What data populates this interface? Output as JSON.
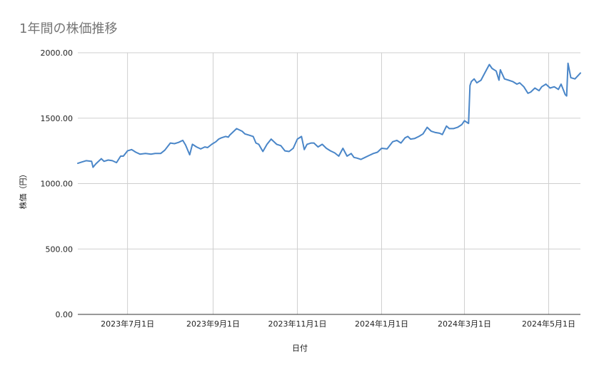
{
  "chart_data": {
    "type": "line",
    "title": "1年間の株価推移",
    "xlabel": "日付",
    "ylabel": "株価（円）",
    "ylim": [
      0,
      2000
    ],
    "yticks": [
      {
        "value": 0,
        "label": "0.00"
      },
      {
        "value": 500,
        "label": "500.00"
      },
      {
        "value": 1000,
        "label": "1000.00"
      },
      {
        "value": 1500,
        "label": "1500.00"
      },
      {
        "value": 2000,
        "label": "2000.00"
      }
    ],
    "xlim": [
      "2023-05-26",
      "2024-05-24"
    ],
    "xticks": [
      {
        "value": "2023-07-01",
        "label": "2023年7月1日"
      },
      {
        "value": "2023-09-01",
        "label": "2023年9月1日"
      },
      {
        "value": "2023-11-01",
        "label": "2023年11月1日"
      },
      {
        "value": "2024-01-01",
        "label": "2024年1月1日"
      },
      {
        "value": "2024-03-01",
        "label": "2024年3月1日"
      },
      {
        "value": "2024-05-01",
        "label": "2024年5月1日"
      }
    ],
    "grid": true,
    "legend": "none",
    "line_color": "#4a86c8",
    "series": [
      {
        "x": [
          "2023-05-26",
          "2023-05-29",
          "2023-06-01",
          "2023-06-05",
          "2023-06-06",
          "2023-06-08",
          "2023-06-12",
          "2023-06-14",
          "2023-06-17",
          "2023-06-20",
          "2023-06-23",
          "2023-06-26",
          "2023-06-28",
          "2023-07-01",
          "2023-07-04",
          "2023-07-07",
          "2023-07-10",
          "2023-07-14",
          "2023-07-18",
          "2023-07-21",
          "2023-07-25",
          "2023-07-28",
          "2023-08-01",
          "2023-08-04",
          "2023-08-07",
          "2023-08-10",
          "2023-08-12",
          "2023-08-15",
          "2023-08-17",
          "2023-08-20",
          "2023-08-23",
          "2023-08-26",
          "2023-08-28",
          "2023-08-31",
          "2023-09-03",
          "2023-09-05",
          "2023-09-07",
          "2023-09-10",
          "2023-09-12",
          "2023-09-13",
          "2023-09-18",
          "2023-09-22",
          "2023-09-24",
          "2023-09-27",
          "2023-09-30",
          "2023-10-02",
          "2023-10-04",
          "2023-10-07",
          "2023-10-10",
          "2023-10-13",
          "2023-10-17",
          "2023-10-20",
          "2023-10-23",
          "2023-10-26",
          "2023-10-29",
          "2023-11-01",
          "2023-11-04",
          "2023-11-06",
          "2023-11-08",
          "2023-11-11",
          "2023-11-13",
          "2023-11-16",
          "2023-11-19",
          "2023-11-22",
          "2023-11-25",
          "2023-11-28",
          "2023-12-01",
          "2023-12-04",
          "2023-12-07",
          "2023-12-10",
          "2023-12-12",
          "2023-12-14",
          "2023-12-17",
          "2023-12-20",
          "2023-12-23",
          "2023-12-26",
          "2023-12-29",
          "2024-01-01",
          "2024-01-05",
          "2024-01-09",
          "2024-01-12",
          "2024-01-15",
          "2024-01-18",
          "2024-01-20",
          "2024-01-22",
          "2024-01-25",
          "2024-01-28",
          "2024-01-31",
          "2024-02-03",
          "2024-02-06",
          "2024-02-09",
          "2024-02-12",
          "2024-02-14",
          "2024-02-17",
          "2024-02-19",
          "2024-02-22",
          "2024-02-25",
          "2024-02-28",
          "2024-03-01",
          "2024-03-04",
          "2024-03-05",
          "2024-03-06",
          "2024-03-08",
          "2024-03-10",
          "2024-03-13",
          "2024-03-16",
          "2024-03-19",
          "2024-03-21",
          "2024-03-24",
          "2024-03-26",
          "2024-03-27",
          "2024-03-30",
          "2024-04-02",
          "2024-04-05",
          "2024-04-08",
          "2024-04-10",
          "2024-04-13",
          "2024-04-16",
          "2024-04-18",
          "2024-04-21",
          "2024-04-24",
          "2024-04-26",
          "2024-04-29",
          "2024-05-02",
          "2024-05-05",
          "2024-05-08",
          "2024-05-10",
          "2024-05-13",
          "2024-05-14",
          "2024-05-15",
          "2024-05-17",
          "2024-05-20",
          "2024-05-24"
        ],
        "y": [
          1155,
          1165,
          1175,
          1170,
          1125,
          1150,
          1190,
          1170,
          1180,
          1175,
          1160,
          1210,
          1210,
          1250,
          1260,
          1240,
          1225,
          1230,
          1225,
          1230,
          1230,
          1255,
          1310,
          1305,
          1315,
          1330,
          1295,
          1220,
          1300,
          1280,
          1265,
          1280,
          1275,
          1300,
          1320,
          1340,
          1350,
          1360,
          1355,
          1370,
          1420,
          1400,
          1380,
          1370,
          1360,
          1310,
          1300,
          1245,
          1300,
          1340,
          1300,
          1290,
          1250,
          1245,
          1270,
          1340,
          1360,
          1260,
          1300,
          1310,
          1310,
          1280,
          1300,
          1270,
          1250,
          1235,
          1210,
          1270,
          1210,
          1230,
          1200,
          1195,
          1185,
          1200,
          1215,
          1230,
          1240,
          1270,
          1265,
          1320,
          1330,
          1310,
          1350,
          1360,
          1340,
          1345,
          1360,
          1380,
          1430,
          1400,
          1390,
          1385,
          1375,
          1440,
          1420,
          1420,
          1430,
          1450,
          1480,
          1460,
          1750,
          1780,
          1800,
          1770,
          1790,
          1850,
          1910,
          1880,
          1860,
          1790,
          1870,
          1800,
          1790,
          1780,
          1760,
          1770,
          1740,
          1690,
          1700,
          1730,
          1710,
          1740,
          1760,
          1730,
          1740,
          1720,
          1760,
          1680,
          1670,
          1920,
          1810,
          1800,
          1845
        ]
      }
    ]
  }
}
